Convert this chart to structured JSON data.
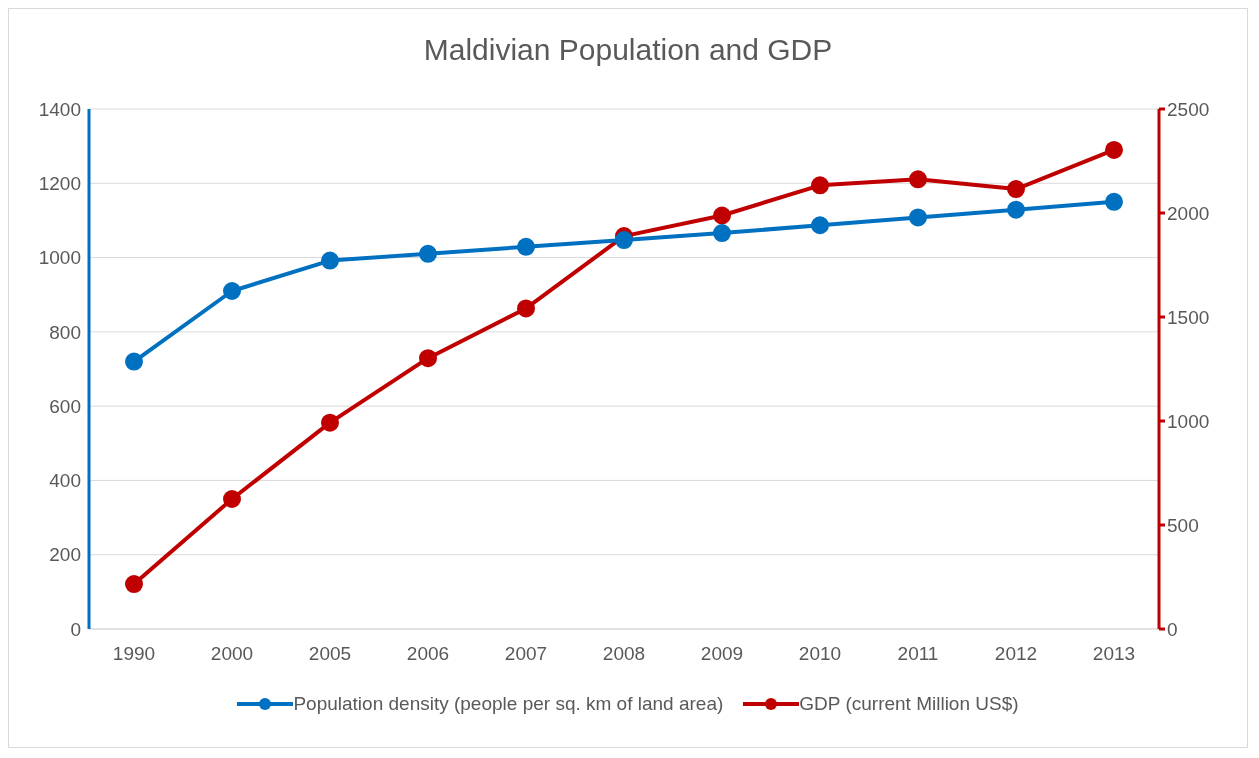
{
  "chart_data": {
    "type": "line",
    "title": "Maldivian Population and GDP",
    "categories": [
      "1990",
      "2000",
      "2005",
      "2006",
      "2007",
      "2008",
      "2009",
      "2010",
      "2011",
      "2012",
      "2013"
    ],
    "series": [
      {
        "name": "Population density (people per sq. km of land area)",
        "color": "#0070c0",
        "values": [
          720,
          910,
          992,
          1010,
          1029,
          1047,
          1066,
          1087,
          1108,
          1129,
          1150
        ]
      },
      {
        "name": "GDP (current Million US$)",
        "color": "#c00000",
        "axis": "y2",
        "values": [
          216,
          625,
          992,
          1302,
          1541,
          1889,
          1988,
          2133,
          2162,
          2115,
          2303
        ]
      }
    ],
    "ylim": [
      0,
      1400
    ],
    "yticks": [
      0,
      200,
      400,
      600,
      800,
      1000,
      1200,
      1400
    ],
    "y2lim": [
      0,
      2500
    ],
    "y2ticks": [
      0,
      500,
      1000,
      1500,
      2000,
      2500
    ],
    "grid": "y",
    "legend": "bottom",
    "marker": "circle",
    "line_style": "solid"
  }
}
